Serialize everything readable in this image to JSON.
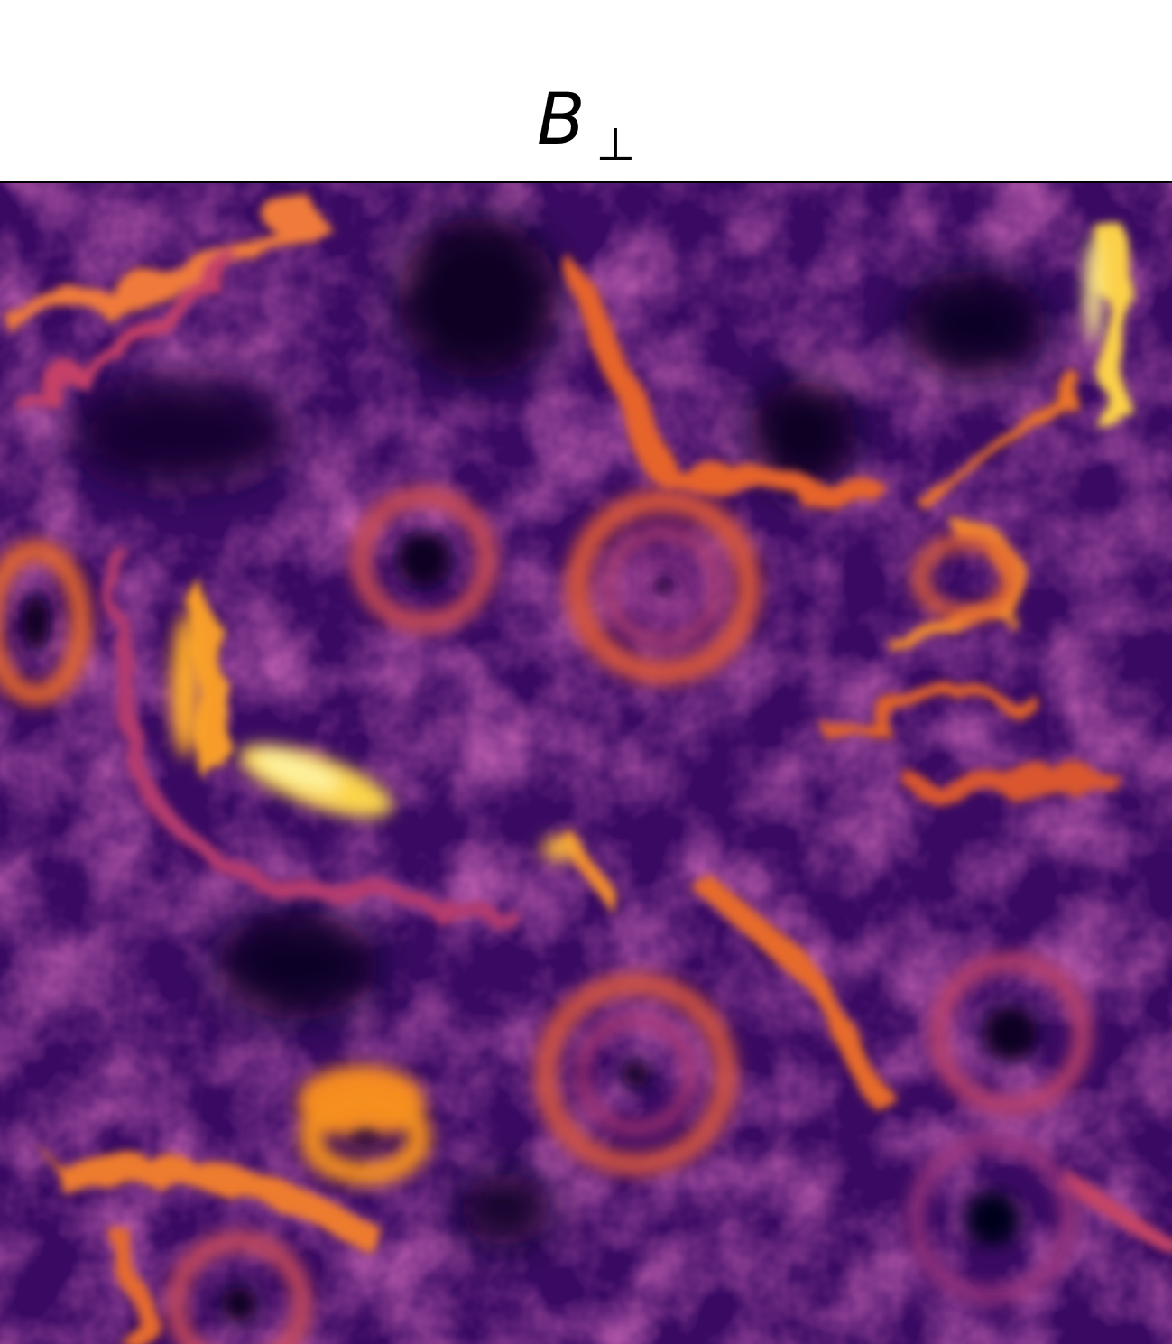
{
  "title": {
    "main": "B",
    "subscript": "⊥"
  }
}
